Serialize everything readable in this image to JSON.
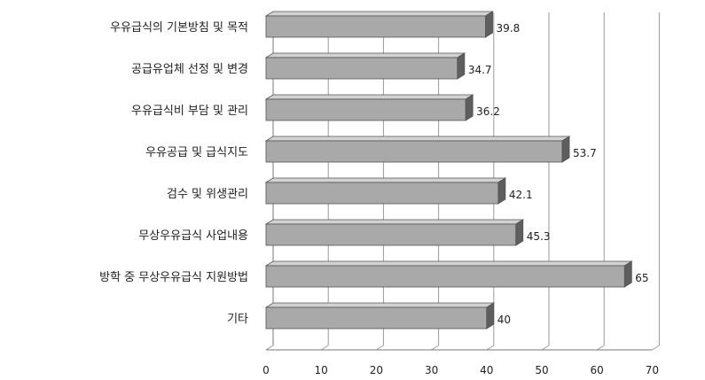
{
  "chart_data": {
    "type": "bar",
    "orientation": "horizontal",
    "style": "3d",
    "categories": [
      "우유급식의 기본방침 및 목적",
      "공급유업체 선정 및 변경",
      "우유급식비 부담 및 관리",
      "우유공급 및 급식지도",
      "검수 및 위생관리",
      "무상우유급식 사업내용",
      "방학 중 무상우유급식 지원방법",
      "기타"
    ],
    "values": [
      39.8,
      34.7,
      36.2,
      53.7,
      42.1,
      45.3,
      65,
      40
    ],
    "value_labels": [
      "39.8",
      "34.7",
      "36.2",
      "53.7",
      "42.1",
      "45.3",
      "65",
      "40"
    ],
    "xlim": [
      0,
      70
    ],
    "x_ticks": [
      "0",
      "10",
      "20",
      "30",
      "40",
      "50",
      "60",
      "70"
    ],
    "grid": true,
    "legend": "none",
    "title": "",
    "xlabel": "",
    "ylabel": "",
    "colors": {
      "bar_front": "#a9a9a9",
      "bar_top": "#d2d2d2",
      "bar_side": "#5e5e5e",
      "bar_edge": "#555555"
    }
  }
}
